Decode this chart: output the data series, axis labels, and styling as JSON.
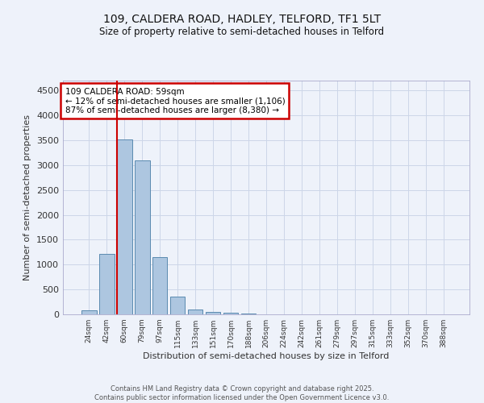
{
  "title_line1": "109, CALDERA ROAD, HADLEY, TELFORD, TF1 5LT",
  "title_line2": "Size of property relative to semi-detached houses in Telford",
  "xlabel": "Distribution of semi-detached houses by size in Telford",
  "ylabel": "Number of semi-detached properties",
  "bin_labels": [
    "24sqm",
    "42sqm",
    "60sqm",
    "79sqm",
    "97sqm",
    "115sqm",
    "133sqm",
    "151sqm",
    "170sqm",
    "188sqm",
    "206sqm",
    "224sqm",
    "242sqm",
    "261sqm",
    "279sqm",
    "297sqm",
    "315sqm",
    "333sqm",
    "352sqm",
    "370sqm",
    "388sqm"
  ],
  "bin_values": [
    80,
    1220,
    3520,
    3100,
    1150,
    350,
    100,
    55,
    25,
    10,
    5,
    0,
    0,
    0,
    0,
    0,
    0,
    0,
    0,
    0,
    0
  ],
  "bar_color": "#adc6e0",
  "bar_edge_color": "#5a8ab0",
  "property_bin_index": 2,
  "vline_color": "#cc0000",
  "annotation_text": "109 CALDERA ROAD: 59sqm\n← 12% of semi-detached houses are smaller (1,106)\n87% of semi-detached houses are larger (8,380) →",
  "annotation_box_color": "#cc0000",
  "ylim": [
    0,
    4700
  ],
  "yticks": [
    0,
    500,
    1000,
    1500,
    2000,
    2500,
    3000,
    3500,
    4000,
    4500
  ],
  "grid_color": "#ccd6e8",
  "bg_color": "#eef2fa",
  "footer_line1": "Contains HM Land Registry data © Crown copyright and database right 2025.",
  "footer_line2": "Contains public sector information licensed under the Open Government Licence v3.0."
}
